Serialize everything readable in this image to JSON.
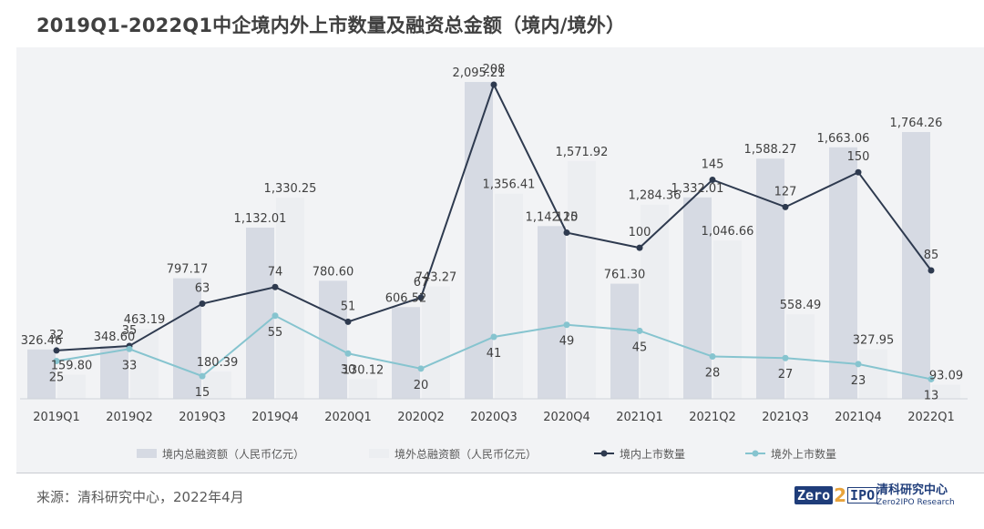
{
  "title": "2019Q1-2022Q1中企境内外上市数量及融资总金额（境内/境外）",
  "source": "来源：清科研究中心，2022年4月",
  "logo": {
    "zero": "Zero",
    "two": "2",
    "ipo": "IPO",
    "cn": "清科研究中心",
    "en": "Zero2IPO Research"
  },
  "colors": {
    "bar_domestic": "#d6dae3",
    "bar_overseas": "#eceef1",
    "line_domestic": "#2e3a4f",
    "line_overseas": "#86c4cf",
    "plot_bg": "#f2f3f5"
  },
  "chart_data": {
    "type": "bar",
    "title": "2019Q1-2022Q1中企境内外上市数量及融资总金额（境内/境外）",
    "categories": [
      "2019Q1",
      "2019Q2",
      "2019Q3",
      "2019Q4",
      "2020Q1",
      "2020Q2",
      "2020Q3",
      "2020Q4",
      "2021Q1",
      "2021Q2",
      "2021Q3",
      "2021Q4",
      "2022Q1"
    ],
    "bar_series": [
      {
        "name": "境内总融资额（人民币亿元）",
        "values": [
          326.46,
          348.6,
          797.17,
          1132.01,
          780.6,
          606.52,
          2095.21,
          1142.25,
          761.3,
          1332.01,
          1588.27,
          1663.06,
          1764.26
        ],
        "labels": [
          "326.46",
          "348.60",
          "797.17",
          "1,132.01",
          "780.60",
          "606.52",
          "2,095.21",
          "1,142.25",
          "761.30",
          "1,332.01",
          "1,588.27",
          "1,663.06",
          "1,764.26"
        ]
      },
      {
        "name": "境外总融资额（人民币亿元）",
        "values": [
          159.8,
          463.19,
          180.39,
          1330.25,
          130.12,
          743.27,
          1356.41,
          1571.92,
          1284.36,
          1046.66,
          558.49,
          327.95,
          93.09
        ],
        "labels": [
          "159.80",
          "463.19",
          "180.39",
          "1,330.25",
          "130.12",
          "743.27",
          "1,356.41",
          "1,571.92",
          "1,284.36",
          "1,046.66",
          "558.49",
          "327.95",
          "93.09"
        ]
      }
    ],
    "line_series": [
      {
        "name": "境内上市数量",
        "values": [
          32,
          35,
          63,
          74,
          51,
          67,
          208,
          110,
          100,
          145,
          127,
          150,
          85
        ]
      },
      {
        "name": "境外上市数量",
        "values": [
          25,
          33,
          15,
          55,
          30,
          20,
          41,
          49,
          45,
          28,
          27,
          23,
          13
        ]
      }
    ],
    "bar_ylim": [
      0,
      2300
    ],
    "line_ylim": [
      0,
      210
    ],
    "legend_position": "bottom",
    "grid": false
  }
}
